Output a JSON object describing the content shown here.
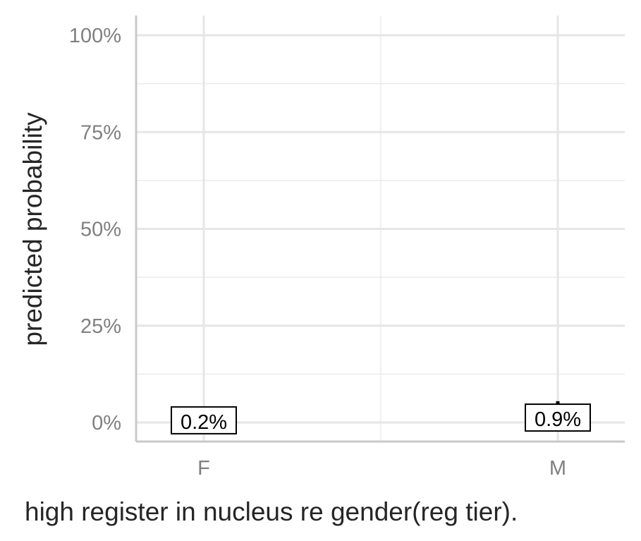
{
  "chart_data": {
    "type": "point",
    "categories": [
      "F",
      "M"
    ],
    "values": [
      0.2,
      0.9
    ],
    "error_upper": [
      0.2,
      5.5
    ],
    "error_lower": [
      0.2,
      0.9
    ],
    "data_labels": [
      "0.2%",
      "0.9%"
    ],
    "ylabel": "predicted probability",
    "xlabel": "high register in nucleus re gender(reg tier).",
    "ylim": [
      0,
      100
    ],
    "yticks": [
      0,
      25,
      50,
      75,
      100
    ],
    "ytick_labels": [
      "0%",
      "25%",
      "50%",
      "75%",
      "100%"
    ],
    "grid": true,
    "legend": "none"
  }
}
